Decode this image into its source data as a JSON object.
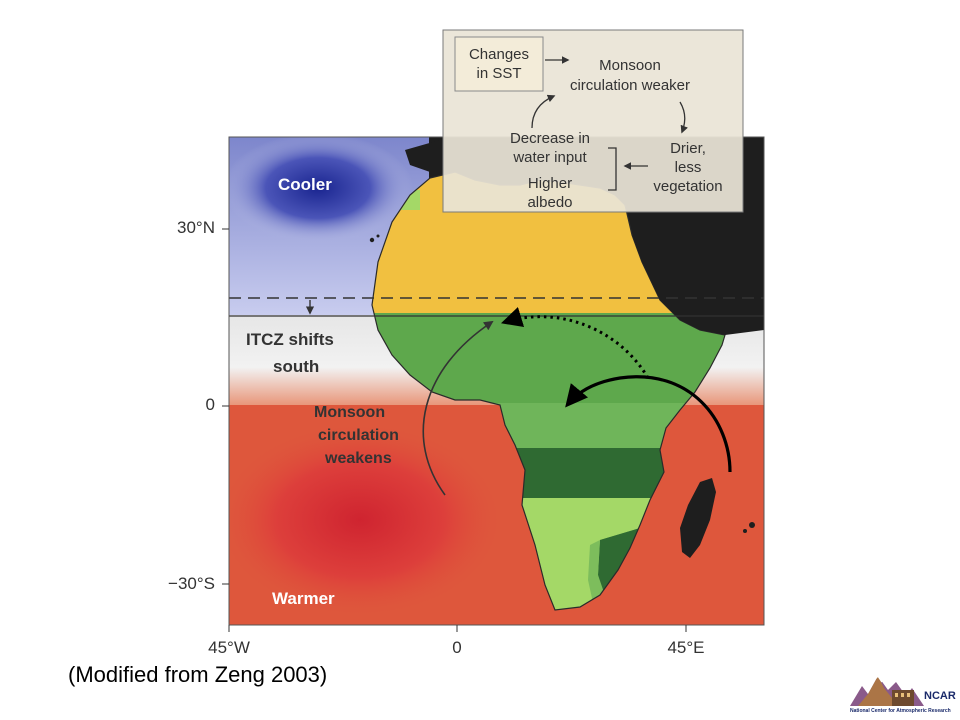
{
  "map": {
    "labels": {
      "cooler": "Cooler",
      "itcz_line1": "ITCZ shifts",
      "itcz_line2": "south",
      "monsoon_line1": "Monsoon",
      "monsoon_line2": "circulation",
      "monsoon_line3": "weakens",
      "warmer": "Warmer"
    },
    "latitude_ticks": [
      "30°N",
      "0",
      "−30°S"
    ],
    "longitude_ticks": [
      "45°W",
      "0",
      "45°E"
    ],
    "colors": {
      "cool_ocean": "#3c45b0",
      "warm_ocean": "#d7463a",
      "sahara": "#f1c040",
      "vegetation": "#4f9a3e",
      "dense_forest": "#2f6a32",
      "south_savanna": "#a4d867",
      "land_outside": "#1e1e1e"
    }
  },
  "feedback_box": {
    "changes_sst_line1": "Changes",
    "changes_sst_line2": "in SST",
    "monsoon_weaker_line1": "Monsoon",
    "monsoon_weaker_line2": "circulation weaker",
    "decrease_line1": "Decrease in",
    "decrease_line2": "water input",
    "albedo_line1": "Higher",
    "albedo_line2": "albedo",
    "drier_line1": "Drier,",
    "drier_line2": "less",
    "drier_line3": "vegetation"
  },
  "caption": "(Modified from Zeng 2003)",
  "logo": {
    "name": "NCAR",
    "subtitle": "National Center for Atmospheric Research"
  }
}
